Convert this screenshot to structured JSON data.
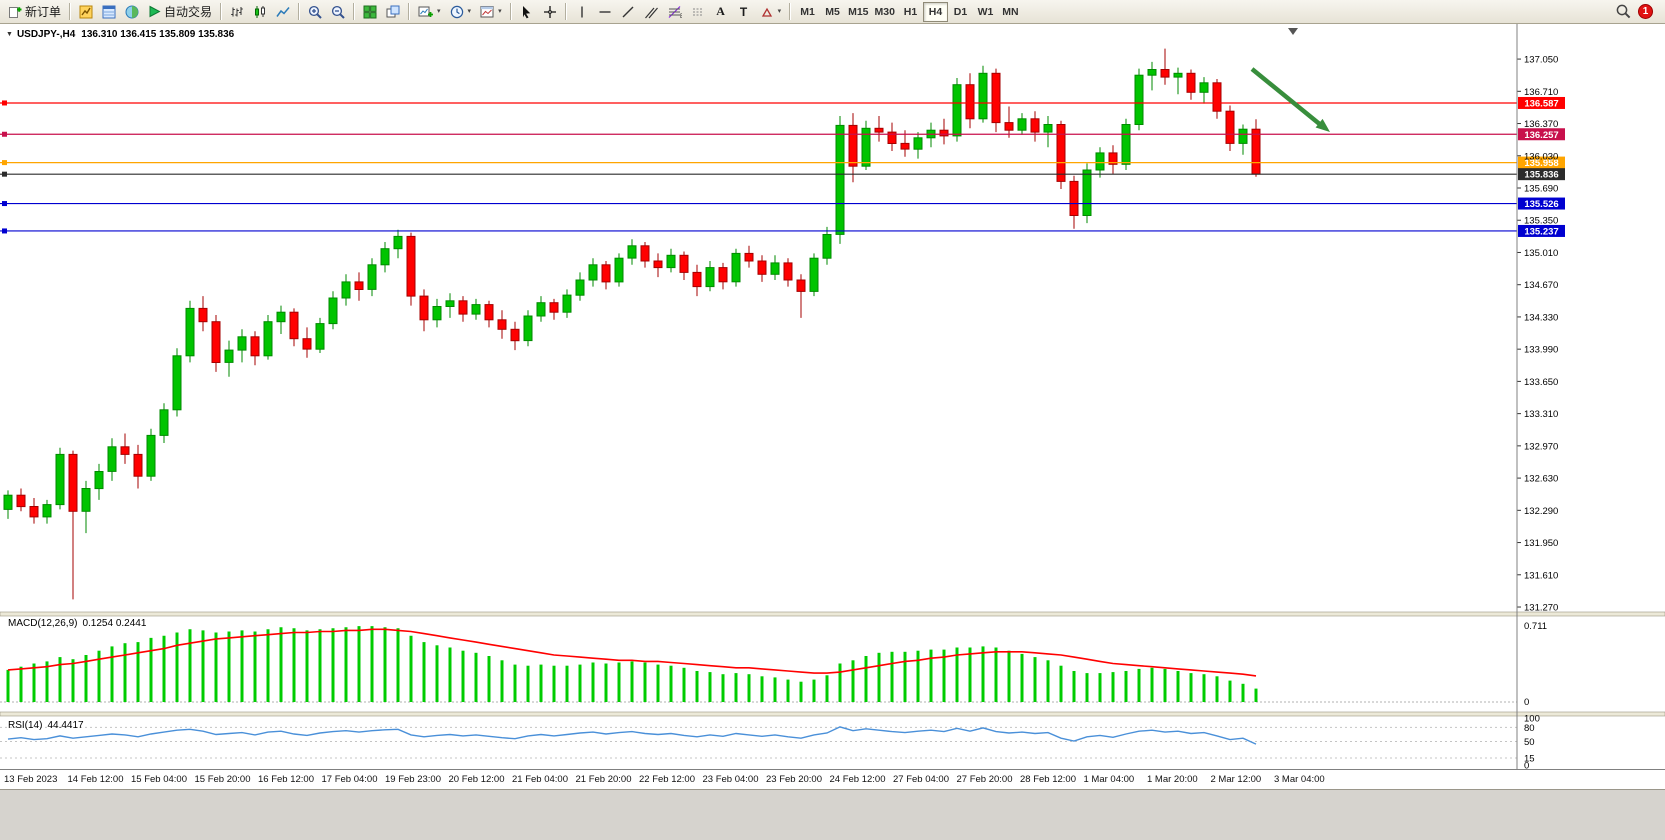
{
  "toolbar": {
    "new_order_label": "新订单",
    "auto_trading_label": "自动交易",
    "text_tool_label": "A",
    "label_tool_label": "T",
    "timeframes": [
      "M1",
      "M5",
      "M15",
      "M30",
      "H1",
      "H4",
      "D1",
      "W1",
      "MN"
    ],
    "active_timeframe": "H4",
    "badge_count": "1"
  },
  "chart": {
    "title": "USDJPY-,H4",
    "ohlc": "136.310 136.415 135.809 135.836"
  },
  "indicators": {
    "macd_name": "MACD(12,26,9)",
    "macd_values": "0.1254 0.2441",
    "rsi_name": "RSI(14)",
    "rsi_value": "44.4417"
  },
  "colors": {
    "bull": "#00C400",
    "bull_border": "#008A00",
    "bear": "#FF0000",
    "bear_border": "#A40000",
    "macd_hist": "#00CC00",
    "macd_signal": "#FF0000",
    "rsi_line": "#4A90D9",
    "arrow": "#388E3C"
  },
  "chart_data": {
    "type": "candlestick",
    "symbol": "USDJPY-",
    "timeframe": "H4",
    "title": "USDJPY-,H4 136.310 136.415 135.809 135.836",
    "price_top": 137.42,
    "price_bottom": 131.27,
    "price_ticks": [
      "137.050",
      "136.710",
      "136.370",
      "136.030",
      "135.690",
      "135.350",
      "135.010",
      "134.670",
      "134.330",
      "133.990",
      "133.650",
      "133.310",
      "132.970",
      "132.630",
      "132.290",
      "131.950",
      "131.610",
      "131.270"
    ],
    "hlines": [
      {
        "price": 136.587,
        "label": "136.587",
        "color": "#FF0000"
      },
      {
        "price": 136.257,
        "label": "136.257",
        "color": "#C8104C"
      },
      {
        "price": 135.958,
        "label": "135.958",
        "color": "#FFA500"
      },
      {
        "price": 135.836,
        "label": "135.836",
        "color": "#2B2B2B",
        "current": true
      },
      {
        "price": 135.526,
        "label": "135.526",
        "color": "#0000D0"
      },
      {
        "price": 135.237,
        "label": "135.237",
        "color": "#0000D0"
      }
    ],
    "candles": [
      [
        132.3,
        132.5,
        132.2,
        132.45
      ],
      [
        132.45,
        132.52,
        132.28,
        132.33
      ],
      [
        132.33,
        132.42,
        132.15,
        132.22
      ],
      [
        132.22,
        132.4,
        132.15,
        132.35
      ],
      [
        132.35,
        132.95,
        132.3,
        132.88
      ],
      [
        132.88,
        132.92,
        131.35,
        132.28
      ],
      [
        132.28,
        132.6,
        132.05,
        132.52
      ],
      [
        132.52,
        132.78,
        132.4,
        132.7
      ],
      [
        132.7,
        133.05,
        132.6,
        132.96
      ],
      [
        132.96,
        133.1,
        132.78,
        132.88
      ],
      [
        132.88,
        132.98,
        132.52,
        132.65
      ],
      [
        132.65,
        133.15,
        132.6,
        133.08
      ],
      [
        133.08,
        133.42,
        133.0,
        133.35
      ],
      [
        133.35,
        134.0,
        133.28,
        133.92
      ],
      [
        133.92,
        134.5,
        133.85,
        134.42
      ],
      [
        134.42,
        134.55,
        134.18,
        134.28
      ],
      [
        134.28,
        134.35,
        133.75,
        133.85
      ],
      [
        133.85,
        134.08,
        133.7,
        133.98
      ],
      [
        133.98,
        134.2,
        133.85,
        134.12
      ],
      [
        134.12,
        134.18,
        133.82,
        133.92
      ],
      [
        133.92,
        134.35,
        133.88,
        134.28
      ],
      [
        134.28,
        134.45,
        134.15,
        134.38
      ],
      [
        134.38,
        134.42,
        134.02,
        134.1
      ],
      [
        134.1,
        134.22,
        133.9,
        133.99
      ],
      [
        133.99,
        134.32,
        133.95,
        134.26
      ],
      [
        134.26,
        134.6,
        134.2,
        134.53
      ],
      [
        134.53,
        134.78,
        134.45,
        134.7
      ],
      [
        134.7,
        134.8,
        134.5,
        134.62
      ],
      [
        134.62,
        134.95,
        134.55,
        134.88
      ],
      [
        134.88,
        135.12,
        134.8,
        135.05
      ],
      [
        135.05,
        135.25,
        134.95,
        135.18
      ],
      [
        135.18,
        135.22,
        134.45,
        134.55
      ],
      [
        134.55,
        134.62,
        134.18,
        134.3
      ],
      [
        134.3,
        134.52,
        134.22,
        134.44
      ],
      [
        134.44,
        134.58,
        134.32,
        134.5
      ],
      [
        134.5,
        134.55,
        134.28,
        134.36
      ],
      [
        134.36,
        134.52,
        134.3,
        134.46
      ],
      [
        134.46,
        134.5,
        134.22,
        134.3
      ],
      [
        134.3,
        134.4,
        134.1,
        134.2
      ],
      [
        134.2,
        134.28,
        133.98,
        134.08
      ],
      [
        134.08,
        134.4,
        134.02,
        134.34
      ],
      [
        134.34,
        134.55,
        134.28,
        134.48
      ],
      [
        134.48,
        134.52,
        134.3,
        134.38
      ],
      [
        134.38,
        134.62,
        134.32,
        134.56
      ],
      [
        134.56,
        134.8,
        134.5,
        134.72
      ],
      [
        134.72,
        134.95,
        134.65,
        134.88
      ],
      [
        134.88,
        134.92,
        134.62,
        134.7
      ],
      [
        134.7,
        135.0,
        134.65,
        134.95
      ],
      [
        134.95,
        135.15,
        134.88,
        135.08
      ],
      [
        135.08,
        135.12,
        134.85,
        134.92
      ],
      [
        134.92,
        135.0,
        134.75,
        134.85
      ],
      [
        134.85,
        135.05,
        134.8,
        134.98
      ],
      [
        134.98,
        135.02,
        134.72,
        134.8
      ],
      [
        134.8,
        134.88,
        134.55,
        134.65
      ],
      [
        134.65,
        134.92,
        134.6,
        134.85
      ],
      [
        134.85,
        134.9,
        134.62,
        134.7
      ],
      [
        134.7,
        135.05,
        134.65,
        135.0
      ],
      [
        135.0,
        135.08,
        134.85,
        134.92
      ],
      [
        134.92,
        134.98,
        134.7,
        134.78
      ],
      [
        134.78,
        134.98,
        134.72,
        134.9
      ],
      [
        134.9,
        134.95,
        134.65,
        134.72
      ],
      [
        134.72,
        134.78,
        134.32,
        134.6
      ],
      [
        134.6,
        135.0,
        134.55,
        134.95
      ],
      [
        134.95,
        135.28,
        134.88,
        135.2
      ],
      [
        135.2,
        136.45,
        135.1,
        136.35
      ],
      [
        136.35,
        136.48,
        135.75,
        135.92
      ],
      [
        135.92,
        136.4,
        135.88,
        136.32
      ],
      [
        136.32,
        136.45,
        136.18,
        136.28
      ],
      [
        136.28,
        136.38,
        136.08,
        136.16
      ],
      [
        136.16,
        136.3,
        136.02,
        136.1
      ],
      [
        136.1,
        136.28,
        136.0,
        136.22
      ],
      [
        136.22,
        136.38,
        136.12,
        136.3
      ],
      [
        136.3,
        136.42,
        136.15,
        136.24
      ],
      [
        136.24,
        136.85,
        136.18,
        136.78
      ],
      [
        136.78,
        136.9,
        136.32,
        136.42
      ],
      [
        136.42,
        136.98,
        136.38,
        136.9
      ],
      [
        136.9,
        136.95,
        136.28,
        136.38
      ],
      [
        136.38,
        136.55,
        136.22,
        136.3
      ],
      [
        136.3,
        136.48,
        136.25,
        136.42
      ],
      [
        136.42,
        136.5,
        136.18,
        136.28
      ],
      [
        136.28,
        136.45,
        136.12,
        136.36
      ],
      [
        136.36,
        136.4,
        135.68,
        135.76
      ],
      [
        135.76,
        135.82,
        135.26,
        135.4
      ],
      [
        135.4,
        135.95,
        135.32,
        135.88
      ],
      [
        135.88,
        136.12,
        135.8,
        136.06
      ],
      [
        136.06,
        136.14,
        135.84,
        135.94
      ],
      [
        135.94,
        136.42,
        135.88,
        136.36
      ],
      [
        136.36,
        136.95,
        136.3,
        136.88
      ],
      [
        136.88,
        137.02,
        136.72,
        136.94
      ],
      [
        136.94,
        137.16,
        136.78,
        136.86
      ],
      [
        136.86,
        136.96,
        136.68,
        136.9
      ],
      [
        136.9,
        136.94,
        136.62,
        136.7
      ],
      [
        136.7,
        136.86,
        136.58,
        136.8
      ],
      [
        136.8,
        136.84,
        136.42,
        136.5
      ],
      [
        136.5,
        136.56,
        136.08,
        136.16
      ],
      [
        136.16,
        136.36,
        136.04,
        136.31
      ],
      [
        136.31,
        136.415,
        135.809,
        135.836
      ]
    ],
    "macd": {
      "name": "MACD(12,26,9)",
      "current_values": [
        0.1254,
        0.2441
      ],
      "max": 0.711,
      "scale_labels": [
        "0.711",
        "0"
      ],
      "hist": [
        0.3,
        0.33,
        0.36,
        0.38,
        0.42,
        0.4,
        0.44,
        0.48,
        0.52,
        0.55,
        0.56,
        0.6,
        0.62,
        0.65,
        0.68,
        0.67,
        0.65,
        0.66,
        0.67,
        0.66,
        0.68,
        0.7,
        0.69,
        0.67,
        0.68,
        0.69,
        0.7,
        0.71,
        0.71,
        0.7,
        0.69,
        0.62,
        0.56,
        0.53,
        0.51,
        0.48,
        0.46,
        0.43,
        0.39,
        0.35,
        0.34,
        0.35,
        0.34,
        0.34,
        0.35,
        0.37,
        0.36,
        0.37,
        0.38,
        0.37,
        0.35,
        0.34,
        0.32,
        0.29,
        0.28,
        0.26,
        0.27,
        0.26,
        0.24,
        0.23,
        0.21,
        0.19,
        0.21,
        0.25,
        0.36,
        0.39,
        0.43,
        0.46,
        0.47,
        0.47,
        0.48,
        0.49,
        0.49,
        0.51,
        0.51,
        0.52,
        0.51,
        0.48,
        0.45,
        0.42,
        0.39,
        0.34,
        0.29,
        0.27,
        0.27,
        0.28,
        0.29,
        0.31,
        0.32,
        0.31,
        0.29,
        0.27,
        0.26,
        0.24,
        0.2,
        0.17,
        0.1254
      ],
      "signal": [
        0.3,
        0.31,
        0.32,
        0.33,
        0.35,
        0.36,
        0.38,
        0.4,
        0.42,
        0.44,
        0.46,
        0.48,
        0.5,
        0.53,
        0.55,
        0.57,
        0.59,
        0.6,
        0.61,
        0.62,
        0.63,
        0.64,
        0.65,
        0.65,
        0.66,
        0.66,
        0.67,
        0.67,
        0.68,
        0.68,
        0.67,
        0.66,
        0.64,
        0.62,
        0.6,
        0.58,
        0.56,
        0.54,
        0.52,
        0.5,
        0.48,
        0.46,
        0.44,
        0.43,
        0.42,
        0.41,
        0.4,
        0.39,
        0.39,
        0.38,
        0.38,
        0.37,
        0.36,
        0.35,
        0.34,
        0.33,
        0.32,
        0.32,
        0.31,
        0.3,
        0.29,
        0.28,
        0.27,
        0.27,
        0.28,
        0.3,
        0.32,
        0.34,
        0.36,
        0.38,
        0.39,
        0.41,
        0.42,
        0.44,
        0.45,
        0.46,
        0.47,
        0.47,
        0.47,
        0.46,
        0.45,
        0.44,
        0.42,
        0.4,
        0.38,
        0.36,
        0.35,
        0.34,
        0.33,
        0.32,
        0.31,
        0.3,
        0.29,
        0.28,
        0.27,
        0.26,
        0.2441
      ]
    },
    "rsi": {
      "name": "RSI(14)",
      "current_value": 44.4417,
      "levels": [
        100,
        80,
        50,
        15,
        0
      ],
      "values": [
        55,
        58,
        54,
        56,
        62,
        57,
        60,
        63,
        66,
        64,
        60,
        66,
        70,
        74,
        76,
        72,
        65,
        67,
        69,
        64,
        70,
        72,
        66,
        63,
        68,
        71,
        73,
        70,
        73,
        75,
        76,
        64,
        60,
        63,
        65,
        62,
        64,
        61,
        58,
        56,
        62,
        65,
        62,
        65,
        68,
        70,
        66,
        69,
        71,
        67,
        65,
        67,
        63,
        60,
        64,
        61,
        67,
        64,
        61,
        64,
        60,
        57,
        64,
        68,
        81,
        73,
        77,
        74,
        71,
        69,
        72,
        74,
        71,
        78,
        72,
        79,
        71,
        68,
        70,
        67,
        69,
        57,
        51,
        60,
        63,
        59,
        66,
        72,
        74,
        70,
        72,
        67,
        69,
        62,
        54,
        57,
        44.4
      ]
    },
    "time_labels": [
      "13 Feb 2023",
      "14 Feb 12:00",
      "15 Feb 04:00",
      "15 Feb 20:00",
      "16 Feb 12:00",
      "17 Feb 04:00",
      "19 Feb 23:00",
      "20 Feb 12:00",
      "21 Feb 04:00",
      "21 Feb 20:00",
      "22 Feb 12:00",
      "23 Feb 04:00",
      "23 Feb 20:00",
      "24 Feb 12:00",
      "27 Feb 04:00",
      "27 Feb 20:00",
      "28 Feb 12:00",
      "1 Mar 04:00",
      "1 Mar 20:00",
      "2 Mar 12:00",
      "3 Mar 04:00"
    ],
    "annotation_arrow": {
      "direction": "down-right",
      "color": "#388E3C"
    }
  }
}
